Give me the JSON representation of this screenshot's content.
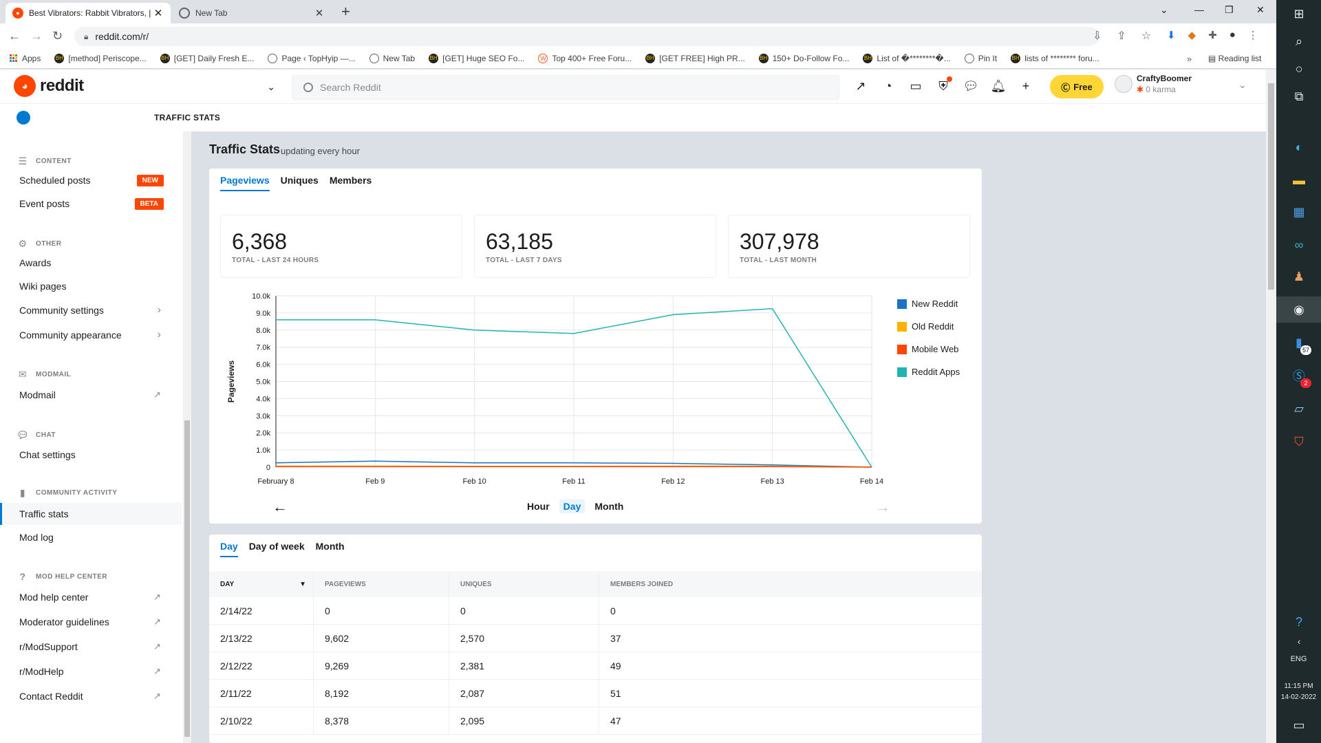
{
  "browser": {
    "tabs": [
      {
        "title": "Best Vibrators: Rabbit Vibrators, |",
        "active": true
      },
      {
        "title": "New Tab",
        "active": false
      }
    ],
    "url": "reddit.com/r/",
    "bookmarks": [
      {
        "label": "Apps",
        "icon": "apps-grid-icon"
      },
      {
        "label": "[method] Periscope...",
        "icon": "bh-icon"
      },
      {
        "label": "[GET] Daily Fresh E...",
        "icon": "bh-icon"
      },
      {
        "label": "Page ‹ TopHyip —...",
        "icon": "globe-icon"
      },
      {
        "label": "New Tab",
        "icon": "globe-icon"
      },
      {
        "label": "[GET] Huge SEO Fo...",
        "icon": "bh-icon"
      },
      {
        "label": "Top 400+ Free Foru...",
        "icon": "w-icon"
      },
      {
        "label": "[GET FREE] High PR...",
        "icon": "bh-icon"
      },
      {
        "label": "150+ Do-Follow Fo...",
        "icon": "bh-icon"
      },
      {
        "label": "List of �********�...",
        "icon": "bh-icon"
      },
      {
        "label": "Pin It",
        "icon": "globe-icon"
      },
      {
        "label": "lists of ******** foru...",
        "icon": "bh-icon"
      }
    ],
    "reading_list": "Reading list",
    "more": "»"
  },
  "reddit": {
    "wordmark": "reddit",
    "search_placeholder": "Search Reddit",
    "free_label": "Free",
    "username": "CraftyBoomer",
    "karma": "0 karma",
    "breadcrumb": "TRAFFIC STATS"
  },
  "sidebar": {
    "sections": {
      "content": "CONTENT",
      "other": "OTHER",
      "modmail": "MODMAIL",
      "chat": "CHAT",
      "activity": "COMMUNITY ACTIVITY",
      "help": "MOD HELP CENTER"
    },
    "items": {
      "scheduled": "Scheduled posts",
      "scheduled_badge": "NEW",
      "event": "Event posts",
      "event_badge": "BETA",
      "awards": "Awards",
      "wiki": "Wiki pages",
      "community_settings": "Community settings",
      "community_appearance": "Community appearance",
      "modmail": "Modmail",
      "chat_settings": "Chat settings",
      "traffic": "Traffic stats",
      "modlog": "Mod log",
      "help_center": "Mod help center",
      "guidelines": "Moderator guidelines",
      "modsupport": "r/ModSupport",
      "modhelp": "r/ModHelp",
      "contact": "Contact Reddit"
    }
  },
  "main": {
    "title": "Traffic Stats",
    "subtitle": "updating every hour",
    "tabs": [
      "Pageviews",
      "Uniques",
      "Members"
    ],
    "stats": [
      {
        "value": "6,368",
        "label": "TOTAL - LAST 24 HOURS"
      },
      {
        "value": "63,185",
        "label": "TOTAL - LAST 7 DAYS"
      },
      {
        "value": "307,978",
        "label": "TOTAL - LAST MONTH"
      }
    ],
    "granularity": [
      "Hour",
      "Day",
      "Month"
    ],
    "table_tabs": [
      "Day",
      "Day of week",
      "Month"
    ],
    "table": {
      "headers": [
        "DAY",
        "PAGEVIEWS",
        "UNIQUES",
        "MEMBERS JOINED"
      ],
      "rows": [
        [
          "2/14/22",
          "0",
          "0",
          "0"
        ],
        [
          "2/13/22",
          "9,602",
          "2,570",
          "37"
        ],
        [
          "2/12/22",
          "9,269",
          "2,381",
          "49"
        ],
        [
          "2/11/22",
          "8,192",
          "2,087",
          "51"
        ],
        [
          "2/10/22",
          "8,378",
          "2,095",
          "47"
        ]
      ]
    }
  },
  "chart_data": {
    "type": "line",
    "x": [
      "February 8",
      "Feb 9",
      "Feb 10",
      "Feb 11",
      "Feb 12",
      "Feb 13",
      "Feb 14"
    ],
    "ylabel": "Pageviews",
    "ylim": [
      0,
      10000
    ],
    "yticks": [
      "0",
      "1.0k",
      "2.0k",
      "3.0k",
      "4.0k",
      "5.0k",
      "6.0k",
      "7.0k",
      "8.0k",
      "9.0k",
      "10.0k"
    ],
    "grid": true,
    "legend_position": "right",
    "series": [
      {
        "name": "New Reddit",
        "color": "#1a73c8",
        "values": [
          250,
          350,
          250,
          250,
          220,
          130,
          0
        ]
      },
      {
        "name": "Old Reddit",
        "color": "#ffb000",
        "values": [
          60,
          60,
          50,
          50,
          60,
          60,
          0
        ]
      },
      {
        "name": "Mobile Web",
        "color": "#ff4500",
        "values": [
          30,
          30,
          30,
          30,
          30,
          30,
          0
        ]
      },
      {
        "name": "Reddit Apps",
        "color": "#22b3b3",
        "values": [
          8600,
          8600,
          8000,
          7800,
          8900,
          9250,
          0
        ]
      }
    ]
  },
  "taskbar": {
    "time": "11:15 PM",
    "date": "14-02-2022",
    "lang": "ENG",
    "badge_57": "57",
    "badge_2": "2"
  }
}
